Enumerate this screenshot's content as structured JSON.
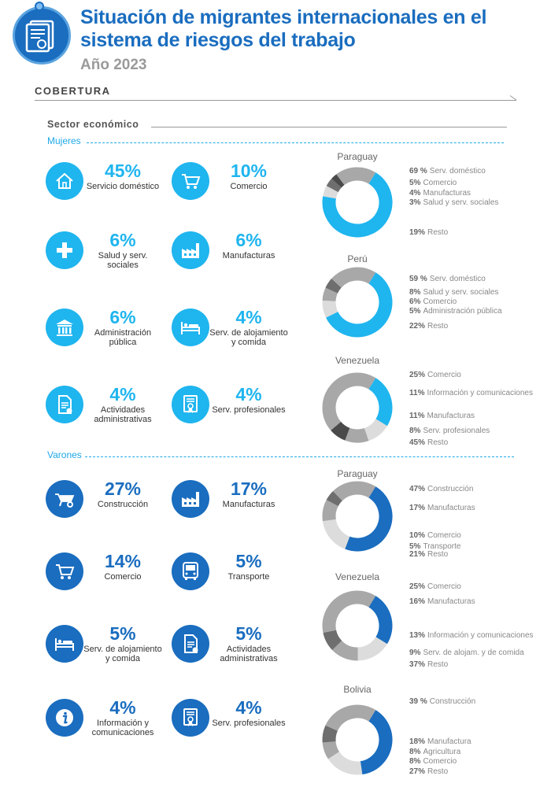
{
  "header": {
    "title": "Situación de migrantes internacionales en el sistema de riesgos del trabajo",
    "year": "Año 2023",
    "section": "COBERTURA",
    "sector_label": "Sector económico"
  },
  "colors": {
    "women": "#1fb5ef",
    "men": "#1a6dbf",
    "ring_light": "#dcdcdc",
    "ring_mid": "#a8a8a8",
    "ring_dark": "#6e6e6e",
    "ring_darkest": "#4a4a4a"
  },
  "women": {
    "label": "Mujeres",
    "tiles": [
      {
        "pct": "45%",
        "label": "Servicio doméstico",
        "icon": "house-icon"
      },
      {
        "pct": "10%",
        "label": "Comercio",
        "icon": "cart-icon"
      },
      {
        "pct": "6%",
        "label": "Salud y serv. sociales",
        "icon": "health-cross-icon"
      },
      {
        "pct": "6%",
        "label": "Manufacturas",
        "icon": "factory-icon"
      },
      {
        "pct": "6%",
        "label": "Administración pública",
        "icon": "government-building-icon"
      },
      {
        "pct": "4%",
        "label": "Serv. de alojamiento y comida",
        "icon": "bed-icon"
      },
      {
        "pct": "4%",
        "label": "Actividades administrativas",
        "icon": "document-check-icon"
      },
      {
        "pct": "4%",
        "label": "Serv. profesionales",
        "icon": "certificate-icon"
      }
    ]
  },
  "men": {
    "label": "Varones",
    "tiles": [
      {
        "pct": "27%",
        "label": "Construcción",
        "icon": "wheelbarrow-icon"
      },
      {
        "pct": "17%",
        "label": "Manufacturas",
        "icon": "factory-icon"
      },
      {
        "pct": "14%",
        "label": "Comercio",
        "icon": "cart-icon"
      },
      {
        "pct": "5%",
        "label": "Transporte",
        "icon": "bus-icon"
      },
      {
        "pct": "5%",
        "label": "Serv. de alojamiento y comida",
        "icon": "bed-icon"
      },
      {
        "pct": "5%",
        "label": "Actividades administrativas",
        "icon": "document-check-icon"
      },
      {
        "pct": "4%",
        "label": "Información y comunicaciones",
        "icon": "info-icon"
      },
      {
        "pct": "4%",
        "label": "Serv. profesionales",
        "icon": "certificate-icon"
      }
    ]
  },
  "chart_data": [
    {
      "type": "pie",
      "group": "Mujeres",
      "title": "Paraguay",
      "categories": [
        "Serv. doméstico",
        "Comercio",
        "Manufacturas",
        "Salud y serv. sociales",
        "Resto"
      ],
      "values": [
        69,
        5,
        4,
        3,
        19
      ],
      "value_labels": [
        "69 %",
        "5%",
        "4%",
        "3%",
        "19%"
      ]
    },
    {
      "type": "pie",
      "group": "Mujeres",
      "title": "Perú",
      "categories": [
        "Serv. doméstico",
        "Salud y serv. sociales",
        "Comercio",
        "Administración pública",
        "Resto"
      ],
      "values": [
        59,
        8,
        6,
        5,
        22
      ],
      "value_labels": [
        "59 %",
        "8%",
        "6%",
        "5%",
        "22%"
      ]
    },
    {
      "type": "pie",
      "group": "Mujeres",
      "title": "Venezuela",
      "categories": [
        "Comercio",
        "Información y comunicaciones",
        "Manufacturas",
        "Serv. profesionales",
        "Resto"
      ],
      "values": [
        25,
        11,
        11,
        8,
        45
      ],
      "value_labels": [
        "25%",
        "11%",
        "11%",
        "8%",
        "45%"
      ]
    },
    {
      "type": "pie",
      "group": "Varones",
      "title": "Paraguay",
      "categories": [
        "Construcción",
        "Manufacturas",
        "Comercio",
        "Transporte",
        "Resto"
      ],
      "values": [
        47,
        17,
        10,
        5,
        21
      ],
      "value_labels": [
        "47%",
        "17%",
        "10%",
        "5%",
        "21%"
      ]
    },
    {
      "type": "pie",
      "group": "Varones",
      "title": "Venezuela",
      "categories": [
        "Comercio",
        "Manufacturas",
        "Información y comunicaciones",
        "Serv. de alojam. y de comida",
        "Resto"
      ],
      "values": [
        25,
        16,
        13,
        9,
        37
      ],
      "value_labels": [
        "25%",
        "16%",
        "13%",
        "9%",
        "37%"
      ]
    },
    {
      "type": "pie",
      "group": "Varones",
      "title": "Bolivia",
      "categories": [
        "Construcción",
        "Manufactura",
        "Agricultura",
        "Comercio",
        "Resto"
      ],
      "values": [
        39,
        18,
        8,
        8,
        27
      ],
      "value_labels": [
        "39 %",
        "18%",
        "8%",
        "8%",
        "27%"
      ]
    }
  ]
}
